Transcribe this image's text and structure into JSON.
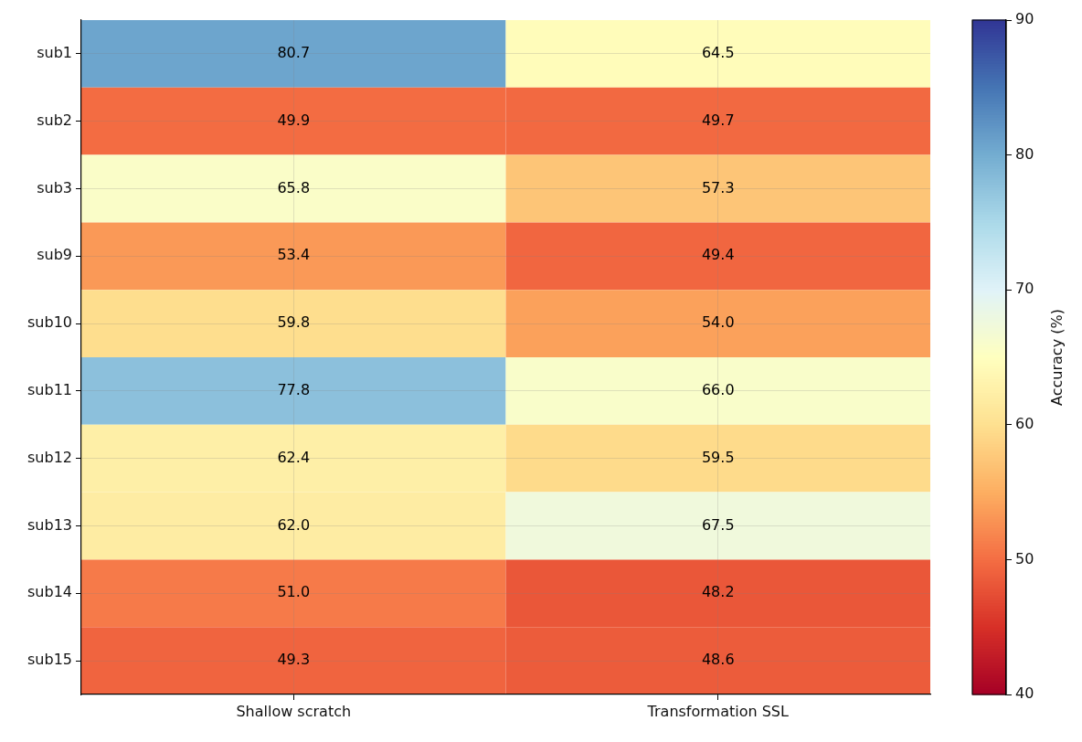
{
  "chart_data": {
    "type": "heatmap",
    "categories": [
      "Shallow scratch",
      "Transformation SSL"
    ],
    "y_categories": [
      "sub1",
      "sub2",
      "sub3",
      "sub9",
      "sub10",
      "sub11",
      "sub12",
      "sub13",
      "sub14",
      "sub15"
    ],
    "cells": [
      [
        80.7,
        64.5
      ],
      [
        49.9,
        49.7
      ],
      [
        65.8,
        57.3
      ],
      [
        53.4,
        49.4
      ],
      [
        59.8,
        54.0
      ],
      [
        77.8,
        66.0
      ],
      [
        62.4,
        59.5
      ],
      [
        62.0,
        67.5
      ],
      [
        51.0,
        48.2
      ],
      [
        49.3,
        48.6
      ]
    ],
    "cell_labels": [
      [
        "80.7",
        "64.5"
      ],
      [
        "49.9",
        "49.7"
      ],
      [
        "65.8",
        "57.3"
      ],
      [
        "53.4",
        "49.4"
      ],
      [
        "59.8",
        "54.0"
      ],
      [
        "77.8",
        "66.0"
      ],
      [
        "62.4",
        "59.5"
      ],
      [
        "62.0",
        "67.5"
      ],
      [
        "51.0",
        "48.2"
      ],
      [
        "49.3",
        "48.6"
      ]
    ],
    "clim": [
      40,
      90
    ],
    "cticks": [
      40,
      50,
      60,
      70,
      80,
      90
    ],
    "clabel": "Accuracy (%)",
    "grid": true
  }
}
